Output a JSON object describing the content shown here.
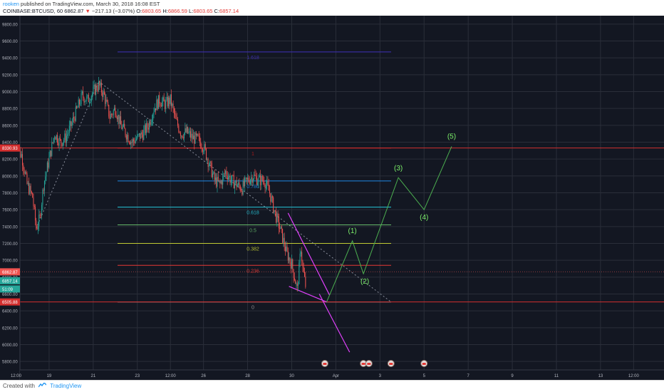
{
  "header": {
    "author": "rooken",
    "published_text": "published on TradingView.com, March 30, 2018 16:08 EST",
    "symbol": "COINBASE:BTCUSD, 60",
    "price": "6862.87",
    "change": "−217.13 (−3.07%)",
    "open_label": "O:",
    "open": "6803.65",
    "high_label": "H:",
    "high": "6866.59",
    "low_label": "L:",
    "low": "6803.65",
    "close_label": "C:",
    "close": "6857.14"
  },
  "footer": {
    "created_with": "Created with",
    "brand": "TradingView"
  },
  "colors": {
    "background": "#131722",
    "grid": "#2a2e39",
    "candle_up": "#26a69a",
    "candle_down": "#ef5350",
    "fib_1_618": "#3f2fb8",
    "fib_1": "#b71c1c",
    "fib_0_786": "#1e88e5",
    "fib_0_618": "#26c6da",
    "fib_0_5": "#66bb6a",
    "fib_0_382": "#c0ca33",
    "fib_0_236": "#e53935",
    "fib_0": "#9e9e9e",
    "projection": "#4caf50",
    "wedge": "#e040fb",
    "hline_red": "#d32f2f"
  },
  "chart_data": {
    "type": "candlestick",
    "symbol": "COINBASE:BTCUSD",
    "interval": "60",
    "ylim": [
      5700,
      9900
    ],
    "y_ticks": [
      "9800.00",
      "9600.00",
      "9400.00",
      "9200.00",
      "9000.00",
      "8800.00",
      "8600.00",
      "8400.00",
      "8200.00",
      "8000.00",
      "7800.00",
      "7600.00",
      "7400.00",
      "7200.00",
      "7000.00",
      "6800.00",
      "6600.00",
      "6400.00",
      "6200.00",
      "6000.00",
      "5800.00"
    ],
    "x_ticks": [
      "12:00",
      "19",
      "21",
      "23",
      "12:00",
      "26",
      "28",
      "30",
      "Apr",
      "3",
      "5",
      "7",
      "9",
      "11",
      "13",
      "12:00"
    ],
    "price_path": [
      [
        "2018-03-17 12:00",
        8320
      ],
      [
        "2018-03-17 18:00",
        8250
      ],
      [
        "2018-03-18 00:00",
        7900
      ],
      [
        "2018-03-18 06:00",
        7750
      ],
      [
        "2018-03-18 10:00",
        7380
      ],
      [
        "2018-03-18 14:00",
        7500
      ],
      [
        "2018-03-18 18:00",
        7900
      ],
      [
        "2018-03-19 00:00",
        8200
      ],
      [
        "2018-03-19 06:00",
        8500
      ],
      [
        "2018-03-19 12:00",
        8400
      ],
      [
        "2018-03-19 18:00",
        8450
      ],
      [
        "2018-03-20 00:00",
        8600
      ],
      [
        "2018-03-20 06:00",
        8780
      ],
      [
        "2018-03-20 12:00",
        8950
      ],
      [
        "2018-03-20 18:00",
        8900
      ],
      [
        "2018-03-21 00:00",
        9000
      ],
      [
        "2018-03-21 06:00",
        9080
      ],
      [
        "2018-03-21 12:00",
        8950
      ],
      [
        "2018-03-21 18:00",
        8700
      ],
      [
        "2018-03-22 00:00",
        8800
      ],
      [
        "2018-03-22 06:00",
        8600
      ],
      [
        "2018-03-22 12:00",
        8500
      ],
      [
        "2018-03-22 18:00",
        8400
      ],
      [
        "2018-03-23 00:00",
        8450
      ],
      [
        "2018-03-23 06:00",
        8500
      ],
      [
        "2018-03-23 12:00",
        8600
      ],
      [
        "2018-03-23 18:00",
        8800
      ],
      [
        "2018-03-24 00:00",
        8900
      ],
      [
        "2018-03-24 06:00",
        8850
      ],
      [
        "2018-03-24 12:00",
        8900
      ],
      [
        "2018-03-24 18:00",
        8650
      ],
      [
        "2018-03-25 00:00",
        8500
      ],
      [
        "2018-03-25 06:00",
        8520
      ],
      [
        "2018-03-25 12:00",
        8450
      ],
      [
        "2018-03-25 18:00",
        8430
      ],
      [
        "2018-03-26 00:00",
        8350
      ],
      [
        "2018-03-26 06:00",
        8150
      ],
      [
        "2018-03-26 12:00",
        7950
      ],
      [
        "2018-03-26 18:00",
        7900
      ],
      [
        "2018-03-27 00:00",
        8050
      ],
      [
        "2018-03-27 06:00",
        7950
      ],
      [
        "2018-03-27 12:00",
        7900
      ],
      [
        "2018-03-27 18:00",
        7850
      ],
      [
        "2018-03-28 00:00",
        7950
      ],
      [
        "2018-03-28 06:00",
        8000
      ],
      [
        "2018-03-28 12:00",
        7950
      ],
      [
        "2018-03-28 18:00",
        7950
      ],
      [
        "2018-03-29 00:00",
        7800
      ],
      [
        "2018-03-29 06:00",
        7550
      ],
      [
        "2018-03-29 12:00",
        7350
      ],
      [
        "2018-03-29 18:00",
        7100
      ],
      [
        "2018-03-30 00:00",
        6950
      ],
      [
        "2018-03-30 06:00",
        6650
      ],
      [
        "2018-03-30 10:00",
        7150
      ],
      [
        "2018-03-30 12:00",
        6900
      ],
      [
        "2018-03-30 15:00",
        6700
      ],
      [
        "2018-03-30 16:00",
        6857
      ]
    ],
    "fib_levels": [
      {
        "label": "1.618",
        "price": 9470,
        "color": "#3f2fb8"
      },
      {
        "label": "1",
        "price": 8330,
        "color": "#b71c1c"
      },
      {
        "label": "0.786",
        "price": 7940,
        "color": "#1e88e5"
      },
      {
        "label": "0.618",
        "price": 7630,
        "color": "#26c6da"
      },
      {
        "label": "0.5",
        "price": 7420,
        "color": "#66bb6a"
      },
      {
        "label": "0.382",
        "price": 7200,
        "color": "#c0ca33"
      },
      {
        "label": "0.236",
        "price": 6940,
        "color": "#e53935"
      },
      {
        "label": "0",
        "price": 6505,
        "color": "#9e9e9e"
      }
    ],
    "horizontal_lines": [
      {
        "price": 8330.93,
        "label": "8330.93",
        "color": "#d32f2f"
      },
      {
        "price": 6505.88,
        "label": "6505.88",
        "color": "#d32f2f"
      }
    ],
    "price_badges": [
      {
        "label": "6862.87",
        "price": 6862.87,
        "color": "#ef5350"
      },
      {
        "label": "6857.14",
        "price": 6757,
        "color": "#26a69a"
      },
      {
        "label": "51:09",
        "price": 6660,
        "color": "#26a69a"
      }
    ],
    "wave_labels": [
      "(1)",
      "(2)",
      "(3)",
      "(4)",
      "(5)"
    ],
    "wave_projection": [
      [
        "2018-03-31 14:00",
        6505
      ],
      [
        "2018-04-01 18:00",
        7230
      ],
      [
        "2018-04-02 06:00",
        6840
      ],
      [
        "2018-04-03 20:00",
        7980
      ],
      [
        "2018-04-05 00:00",
        7600
      ],
      [
        "2018-04-06 06:00",
        8350
      ]
    ]
  }
}
